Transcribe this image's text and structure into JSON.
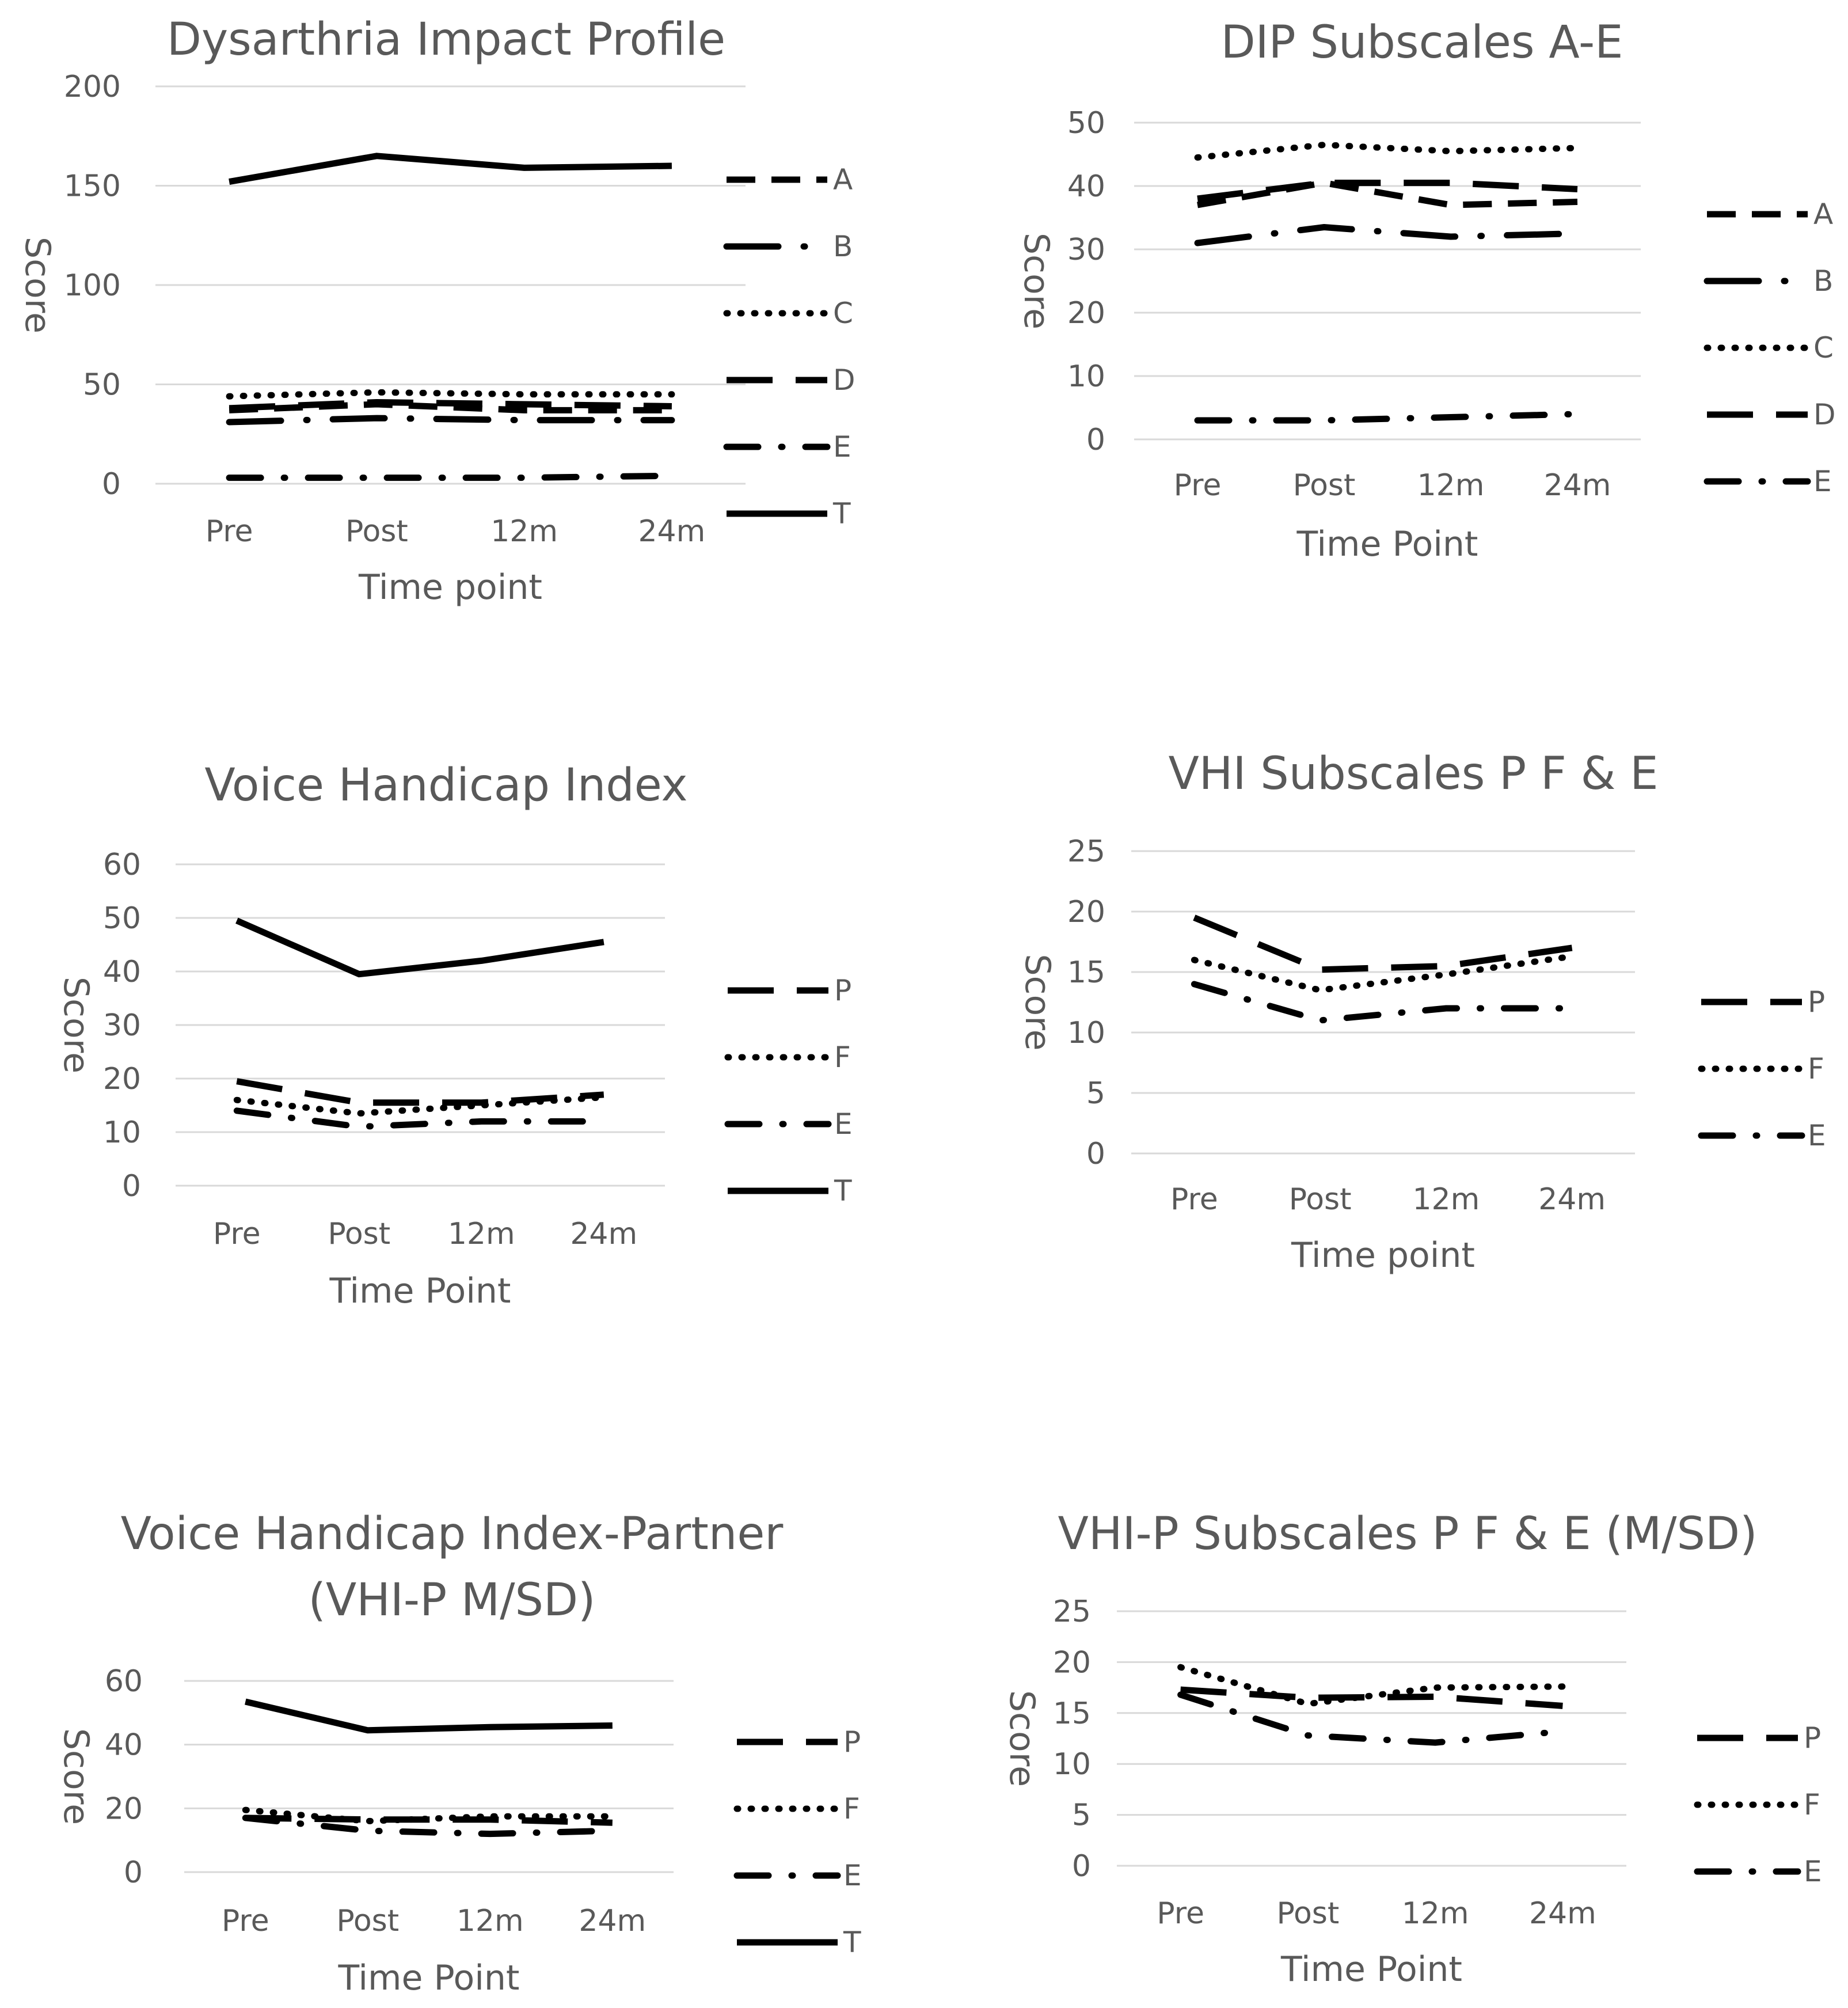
{
  "colors": {
    "text": "#595959",
    "grid": "#d9d9d9",
    "series": "#000000",
    "background": "#ffffff"
  },
  "chart_data": [
    {
      "type": "line",
      "title": [
        "Dysarthria Impact Profile"
      ],
      "xlabel": "Time point",
      "ylabel": "Score",
      "categories": [
        "Pre",
        "Post",
        "12m",
        "24m"
      ],
      "ylim": [
        0,
        200
      ],
      "yticks": [
        0,
        50,
        100,
        150,
        200
      ],
      "grid": true,
      "legend": "right",
      "series": [
        {
          "name": "A",
          "style": "shortdash",
          "values": [
            37,
            40,
            37,
            37
          ]
        },
        {
          "name": "B",
          "style": "longdashdot",
          "values": [
            31,
            33,
            32,
            32
          ]
        },
        {
          "name": "C",
          "style": "dotted",
          "values": [
            44,
            46,
            45,
            45
          ]
        },
        {
          "name": "D",
          "style": "longdash",
          "values": [
            38,
            41,
            40,
            39
          ]
        },
        {
          "name": "E",
          "style": "dashdot",
          "values": [
            3,
            3,
            3,
            4
          ]
        },
        {
          "name": "T",
          "style": "solid",
          "values": [
            152,
            165,
            159,
            160
          ]
        }
      ]
    },
    {
      "type": "line",
      "title": [
        "DIP Subscales A-E"
      ],
      "xlabel": "Time Point",
      "ylabel": "Score",
      "categories": [
        "Pre",
        "Post",
        "12m",
        "24m"
      ],
      "ylim": [
        0,
        50
      ],
      "yticks": [
        0,
        10,
        20,
        30,
        40,
        50
      ],
      "grid": true,
      "legend": "right",
      "series": [
        {
          "name": "A",
          "style": "shortdash",
          "values": [
            37,
            40.5,
            37,
            37.5
          ]
        },
        {
          "name": "B",
          "style": "longdashdot",
          "values": [
            31,
            33.5,
            32,
            32.5
          ]
        },
        {
          "name": "C",
          "style": "dotted",
          "values": [
            44.5,
            46.5,
            45.5,
            46
          ]
        },
        {
          "name": "D",
          "style": "longdash",
          "values": [
            38,
            40.5,
            40.5,
            39.5
          ]
        },
        {
          "name": "E",
          "style": "dashdot",
          "values": [
            3,
            3,
            3.5,
            4
          ]
        }
      ]
    },
    {
      "type": "line",
      "title": [
        "Voice Handicap Index"
      ],
      "xlabel": "Time Point",
      "ylabel": "Score",
      "categories": [
        "Pre",
        "Post",
        "12m",
        "24m"
      ],
      "ylim": [
        0,
        60
      ],
      "yticks": [
        0,
        10,
        20,
        30,
        40,
        50,
        60
      ],
      "grid": true,
      "legend": "right",
      "series": [
        {
          "name": "P",
          "style": "longdash",
          "values": [
            19.5,
            15.5,
            15.5,
            17
          ]
        },
        {
          "name": "F",
          "style": "dotted",
          "values": [
            16,
            13.5,
            15,
            16.5
          ]
        },
        {
          "name": "E",
          "style": "dashdot",
          "values": [
            14,
            11,
            12,
            12
          ]
        },
        {
          "name": "T",
          "style": "solid",
          "values": [
            49.5,
            39.5,
            42,
            45.5
          ]
        }
      ]
    },
    {
      "type": "line",
      "title": [
        "VHI Subscales P F & E"
      ],
      "xlabel": "Time point",
      "ylabel": "Score",
      "categories": [
        "Pre",
        "Post",
        "12m",
        "24m"
      ],
      "ylim": [
        0,
        25
      ],
      "yticks": [
        0,
        5,
        10,
        15,
        20,
        25
      ],
      "grid": true,
      "legend": "right",
      "series": [
        {
          "name": "P",
          "style": "longdash",
          "values": [
            19.5,
            15.2,
            15.5,
            17
          ]
        },
        {
          "name": "F",
          "style": "dotted",
          "values": [
            16,
            13.5,
            14.8,
            16.3
          ]
        },
        {
          "name": "E",
          "style": "dashdot",
          "values": [
            14,
            11,
            12,
            12
          ]
        }
      ]
    },
    {
      "type": "line",
      "title": [
        "Voice Handicap Index-Partner",
        "(VHI-P M/SD)"
      ],
      "xlabel": "Time Point",
      "ylabel": "Score",
      "categories": [
        "Pre",
        "Post",
        "12m",
        "24m"
      ],
      "ylim": [
        0,
        60
      ],
      "yticks": [
        0,
        20,
        40,
        60
      ],
      "grid": true,
      "legend": "right",
      "series": [
        {
          "name": "P",
          "style": "longdash",
          "values": [
            17,
            16.5,
            16.5,
            15.5
          ]
        },
        {
          "name": "F",
          "style": "dotted",
          "values": [
            19.5,
            16,
            17.5,
            17.5
          ]
        },
        {
          "name": "E",
          "style": "dashdot",
          "values": [
            17,
            13,
            12,
            13
          ]
        },
        {
          "name": "T",
          "style": "solid",
          "values": [
            53.5,
            44.5,
            45.5,
            46
          ]
        }
      ]
    },
    {
      "type": "line",
      "title": [
        "VHI-P Subscales P F & E (M/SD)"
      ],
      "xlabel": "Time Point",
      "ylabel": "Score",
      "categories": [
        "Pre",
        "Post",
        "12m",
        "24m"
      ],
      "ylim": [
        0,
        25
      ],
      "yticks": [
        0,
        5,
        10,
        15,
        20,
        25
      ],
      "grid": true,
      "legend": "right",
      "series": [
        {
          "name": "P",
          "style": "longdash",
          "values": [
            17.3,
            16.5,
            16.6,
            15.7
          ]
        },
        {
          "name": "F",
          "style": "dotted",
          "values": [
            19.5,
            15.9,
            17.5,
            17.6
          ]
        },
        {
          "name": "E",
          "style": "dashdot",
          "values": [
            16.8,
            12.8,
            12.1,
            13.2
          ]
        }
      ]
    }
  ]
}
